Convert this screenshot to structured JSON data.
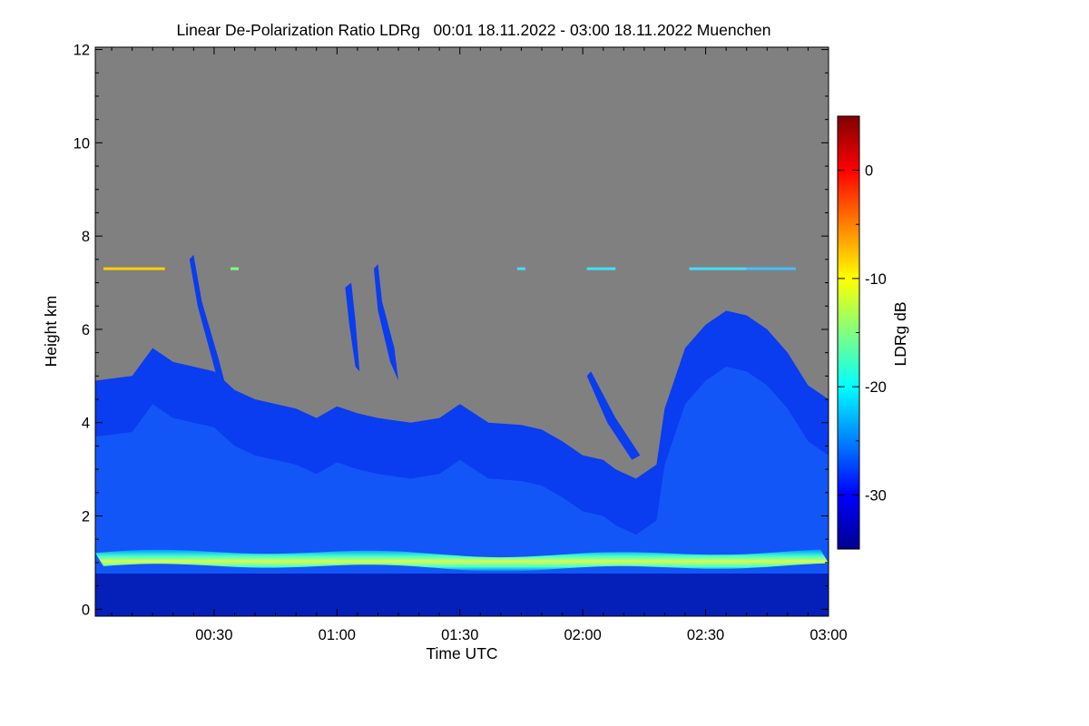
{
  "chart_data": {
    "type": "heatmap",
    "title": "Linear De-Polarization Ratio LDRg   00:01 18.11.2022 - 03:00 18.11.2022 Muenchen",
    "xlabel": "Time UTC",
    "ylabel": "Height km",
    "colorbar_label": "LDRg dB",
    "x_range_minutes_utc": [
      1,
      180
    ],
    "x_ticks": [
      {
        "minutes": 30,
        "label": "00:30"
      },
      {
        "minutes": 60,
        "label": "01:00"
      },
      {
        "minutes": 90,
        "label": "01:30"
      },
      {
        "minutes": 120,
        "label": "02:00"
      },
      {
        "minutes": 150,
        "label": "02:30"
      },
      {
        "minutes": 180,
        "label": "03:00"
      }
    ],
    "y_range_km": [
      -0.15,
      12.05
    ],
    "y_ticks": [
      {
        "value": 0,
        "label": "0"
      },
      {
        "value": 2,
        "label": "2"
      },
      {
        "value": 4,
        "label": "4"
      },
      {
        "value": 6,
        "label": "6"
      },
      {
        "value": 8,
        "label": "8"
      },
      {
        "value": 10,
        "label": "10"
      },
      {
        "value": 12,
        "label": "12"
      }
    ],
    "colorbar_range_db": [
      -35,
      5
    ],
    "colorbar_ticks": [
      {
        "value": 0,
        "label": "0"
      },
      {
        "value": -10,
        "label": "-10"
      },
      {
        "value": -20,
        "label": "-20"
      },
      {
        "value": -30,
        "label": "-30"
      }
    ],
    "colormap": [
      "#00008f",
      "#0000ff",
      "#0080ff",
      "#00ffff",
      "#80ff80",
      "#ffff00",
      "#ff8000",
      "#ff0000",
      "#800000"
    ],
    "no_signal_color": "#808080",
    "cloud_top_km": [
      [
        1,
        4.9
      ],
      [
        10,
        5.0
      ],
      [
        15,
        5.6
      ],
      [
        20,
        5.3
      ],
      [
        25,
        5.2
      ],
      [
        30,
        5.1
      ],
      [
        35,
        4.7
      ],
      [
        40,
        4.5
      ],
      [
        50,
        4.3
      ],
      [
        55,
        4.1
      ],
      [
        60,
        4.35
      ],
      [
        65,
        4.2
      ],
      [
        70,
        4.1
      ],
      [
        78,
        4.0
      ],
      [
        85,
        4.1
      ],
      [
        90,
        4.4
      ],
      [
        97,
        4.0
      ],
      [
        105,
        3.95
      ],
      [
        110,
        3.85
      ],
      [
        115,
        3.6
      ],
      [
        120,
        3.3
      ],
      [
        125,
        3.2
      ],
      [
        128,
        3.0
      ],
      [
        133,
        2.8
      ],
      [
        138,
        3.1
      ],
      [
        140,
        4.3
      ],
      [
        145,
        5.6
      ],
      [
        150,
        6.1
      ],
      [
        155,
        6.4
      ],
      [
        160,
        6.3
      ],
      [
        165,
        6.0
      ],
      [
        170,
        5.5
      ],
      [
        175,
        4.8
      ],
      [
        180,
        4.5
      ]
    ],
    "bright_layer_km": 1.05,
    "high_layer_km": 7.3
  }
}
